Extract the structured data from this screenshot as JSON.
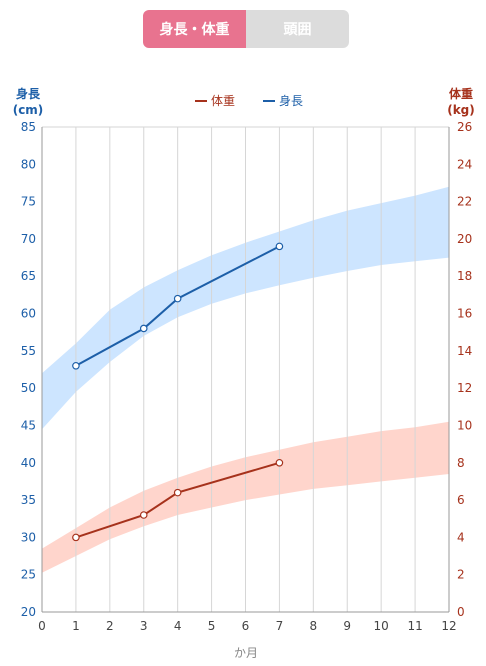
{
  "tabs": [
    {
      "label": "身長・体重",
      "active": true
    },
    {
      "label": "頭囲",
      "active": false
    }
  ],
  "colors": {
    "height_line": "#1d5fa8",
    "weight_line": "#a6321c",
    "height_band": "#cde5ff",
    "weight_band": "#ffd5cc",
    "left_axis_text": "#1d5fa8",
    "right_axis_text": "#a6321c",
    "tab_active": "#e8738f",
    "tab_inactive": "#dcdcdc"
  },
  "chart_data": {
    "type": "line",
    "xlabel": "か月",
    "x_ticks": [
      0,
      1,
      2,
      3,
      4,
      5,
      6,
      7,
      8,
      9,
      10,
      11,
      12
    ],
    "xlim": [
      0,
      12
    ],
    "y_left": {
      "label_line1": "身長",
      "label_line2": "(cm)",
      "lim": [
        20,
        85
      ],
      "ticks": [
        20,
        25,
        30,
        35,
        40,
        45,
        50,
        55,
        60,
        65,
        70,
        75,
        80,
        85
      ]
    },
    "y_right": {
      "label_line1": "体重",
      "label_line2": "(kg)",
      "lim": [
        0,
        26
      ],
      "ticks": [
        0,
        2,
        4,
        6,
        8,
        10,
        12,
        14,
        16,
        18,
        20,
        22,
        24,
        26
      ]
    },
    "grid": "vertical",
    "legend_position": "top-center",
    "legend": [
      {
        "name": "体重",
        "color": "#a6321c"
      },
      {
        "name": "身長",
        "color": "#1d5fa8"
      }
    ],
    "series": [
      {
        "name": "体重",
        "axis": "right",
        "x": [
          1,
          3,
          4,
          7
        ],
        "y": [
          4,
          5.2,
          6.4,
          8
        ]
      },
      {
        "name": "身長",
        "axis": "left",
        "x": [
          1,
          3,
          4,
          7
        ],
        "y": [
          53,
          58,
          62,
          69
        ]
      }
    ],
    "bands": [
      {
        "axis": "left",
        "x": [
          0,
          1,
          2,
          3,
          4,
          5,
          6,
          7,
          8,
          9,
          10,
          11,
          12
        ],
        "lower": [
          44.5,
          49.5,
          53.5,
          57,
          59.5,
          61.3,
          62.7,
          63.8,
          64.8,
          65.7,
          66.5,
          67,
          67.5
        ],
        "upper": [
          52,
          56,
          60.5,
          63.5,
          65.8,
          67.8,
          69.5,
          71,
          72.5,
          73.8,
          74.8,
          75.8,
          77
        ]
      },
      {
        "axis": "right",
        "x": [
          0,
          1,
          2,
          3,
          4,
          5,
          6,
          7,
          8,
          9,
          10,
          11,
          12
        ],
        "lower": [
          2.1,
          3.0,
          3.9,
          4.6,
          5.2,
          5.6,
          6.0,
          6.3,
          6.6,
          6.8,
          7.0,
          7.2,
          7.4
        ],
        "upper": [
          3.4,
          4.5,
          5.6,
          6.5,
          7.2,
          7.8,
          8.3,
          8.7,
          9.1,
          9.4,
          9.7,
          9.9,
          10.2
        ]
      }
    ]
  }
}
